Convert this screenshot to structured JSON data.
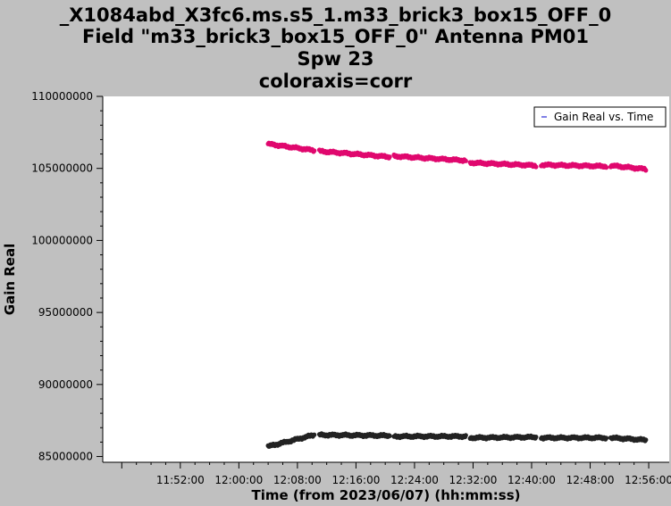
{
  "chart_data": {
    "type": "scatter",
    "title_lines": [
      "_X1084abd_X3fc6.ms.s5_1.m33_brick3_box15_OFF_0",
      "Field \"m33_brick3_box15_OFF_0\" Antenna PM01",
      "Spw 23",
      "coloraxis=corr"
    ],
    "xlabel": "Time (from 2023/06/07) (hh:mm:ss)",
    "ylabel": "Gain Real",
    "x_ticks": [
      "11:52:00",
      "12:00:00",
      "12:08:00",
      "12:16:00",
      "12:24:00",
      "12:32:00",
      "12:40:00",
      "12:48:00",
      "12:56:00"
    ],
    "y_ticks": [
      "85000000",
      "90000000",
      "95000000",
      "100000000",
      "105000000",
      "110000000"
    ],
    "xlim_minutes": [
      -10.6,
      66.8
    ],
    "x_origin": "11:52:00",
    "ylim": [
      84600000,
      110000000
    ],
    "legend": {
      "label": "Gain Real vs. Time",
      "position": "top-right"
    },
    "colors": {
      "corr0": "#e0086e",
      "corr1": "#222222",
      "legend_marker": "#0000cc"
    },
    "series": [
      {
        "color": "#e0086e",
        "scans": [
          {
            "t0": 12.0,
            "t1": 18.3,
            "v0": 106700000,
            "v1": 106250000
          },
          {
            "t0": 19.0,
            "t1": 28.6,
            "v0": 106200000,
            "v1": 105800000
          },
          {
            "t0": 29.2,
            "t1": 39.0,
            "v0": 105850000,
            "v1": 105550000
          },
          {
            "t0": 39.6,
            "t1": 48.6,
            "v0": 105400000,
            "v1": 105200000
          },
          {
            "t0": 49.3,
            "t1": 58.2,
            "v0": 105250000,
            "v1": 105150000
          },
          {
            "t0": 58.8,
            "t1": 63.6,
            "v0": 105200000,
            "v1": 104950000
          }
        ]
      },
      {
        "color": "#222222",
        "scans": [
          {
            "t0": 12.0,
            "t1": 18.3,
            "v0": 85700000,
            "v1": 86500000
          },
          {
            "t0": 19.0,
            "t1": 28.6,
            "v0": 86500000,
            "v1": 86450000
          },
          {
            "t0": 29.2,
            "t1": 39.0,
            "v0": 86400000,
            "v1": 86400000
          },
          {
            "t0": 39.6,
            "t1": 48.6,
            "v0": 86300000,
            "v1": 86350000
          },
          {
            "t0": 49.3,
            "t1": 58.2,
            "v0": 86300000,
            "v1": 86300000
          },
          {
            "t0": 58.8,
            "t1": 63.6,
            "v0": 86300000,
            "v1": 86150000
          }
        ]
      }
    ]
  }
}
